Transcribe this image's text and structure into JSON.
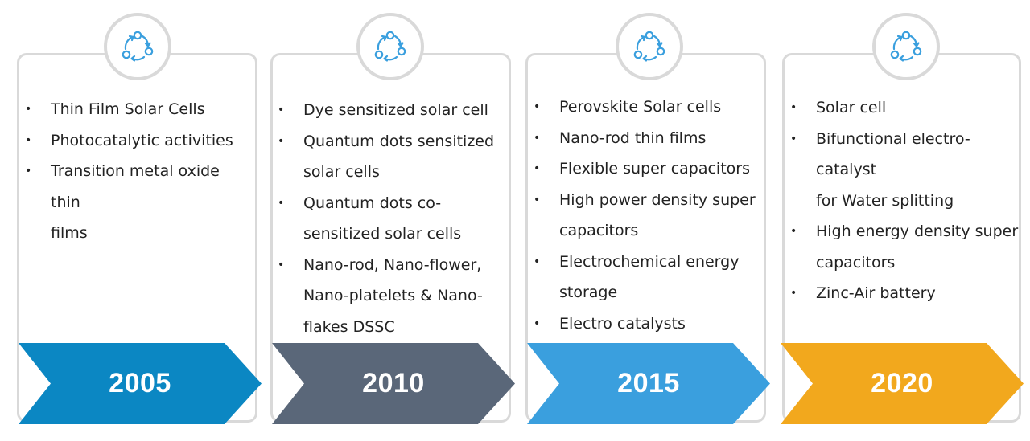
{
  "timeline": [
    {
      "year": "2005",
      "color": "#0b87c3",
      "icon": "cycle-icon",
      "items": [
        "Thin Film Solar Cells",
        "Photocatalytic activities",
        "Transition metal oxide thin",
        "films"
      ]
    },
    {
      "year": "2010",
      "color": "#5a6779",
      "icon": "cycle-icon",
      "items": [
        "Dye sensitized solar cell",
        "Quantum dots sensitized",
        "solar cells",
        "Quantum dots co-",
        "sensitized solar cells",
        "Nano-rod, Nano-flower,",
        "Nano-platelets & Nano-",
        "flakes DSSC"
      ]
    },
    {
      "year": "2015",
      "color": "#3a9fde",
      "icon": "cycle-icon",
      "items": [
        "Perovskite Solar cells",
        "Nano-rod thin films",
        "Flexible super capacitors",
        "High power density super",
        "capacitors",
        "Electrochemical energy",
        "storage",
        "Electro catalysts"
      ]
    },
    {
      "year": "2020",
      "color": "#f2a81d",
      "icon": "cycle-icon",
      "items": [
        "Solar cell",
        "Bifunctional electro-catalyst",
        "for Water splitting",
        "High energy density super",
        "capacitors",
        "Zinc-Air battery"
      ]
    }
  ]
}
